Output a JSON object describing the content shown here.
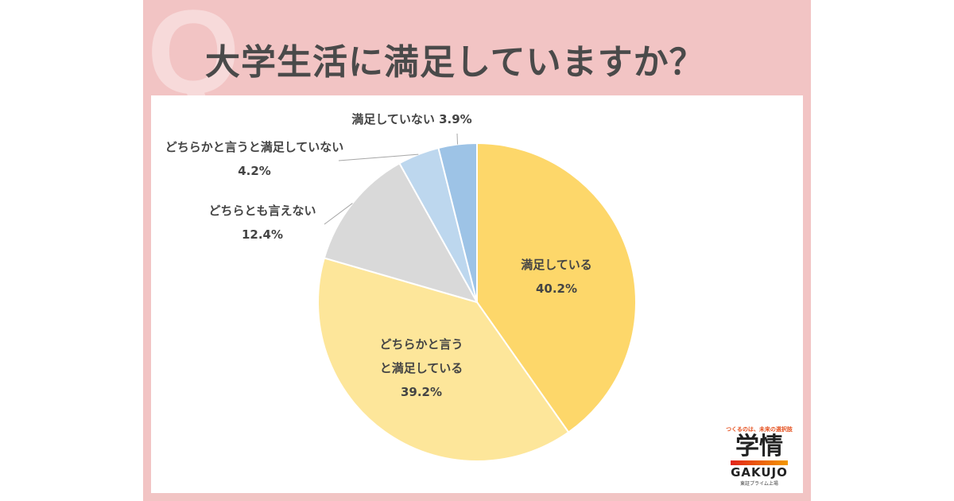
{
  "chart_data": {
    "type": "pie",
    "title": "大学生活に満足していますか？",
    "start": "top",
    "direction": "clockwise",
    "slices": [
      {
        "label": "満足している",
        "value": 40.2,
        "display": "40.2%",
        "color": "#fdd76a"
      },
      {
        "label": "どちらかと言うと満足している",
        "value": 39.2,
        "display": "39.2%",
        "color": "#fde69a"
      },
      {
        "label": "どちらとも言えない",
        "value": 12.4,
        "display": "12.4%",
        "color": "#d9d9d9"
      },
      {
        "label": "どちらかと言うと満足していない",
        "value": 4.2,
        "display": "4.2%",
        "color": "#bdd7ee"
      },
      {
        "label": "満足していない",
        "value": 3.9,
        "display": "3.9%",
        "color": "#9dc3e6"
      }
    ]
  },
  "q_mark": "Q",
  "logo": {
    "tagline": "つくるのは、未来の選択肢",
    "kanji": "学情",
    "name": "GAKUJO",
    "sub": "東証プライム上場"
  }
}
